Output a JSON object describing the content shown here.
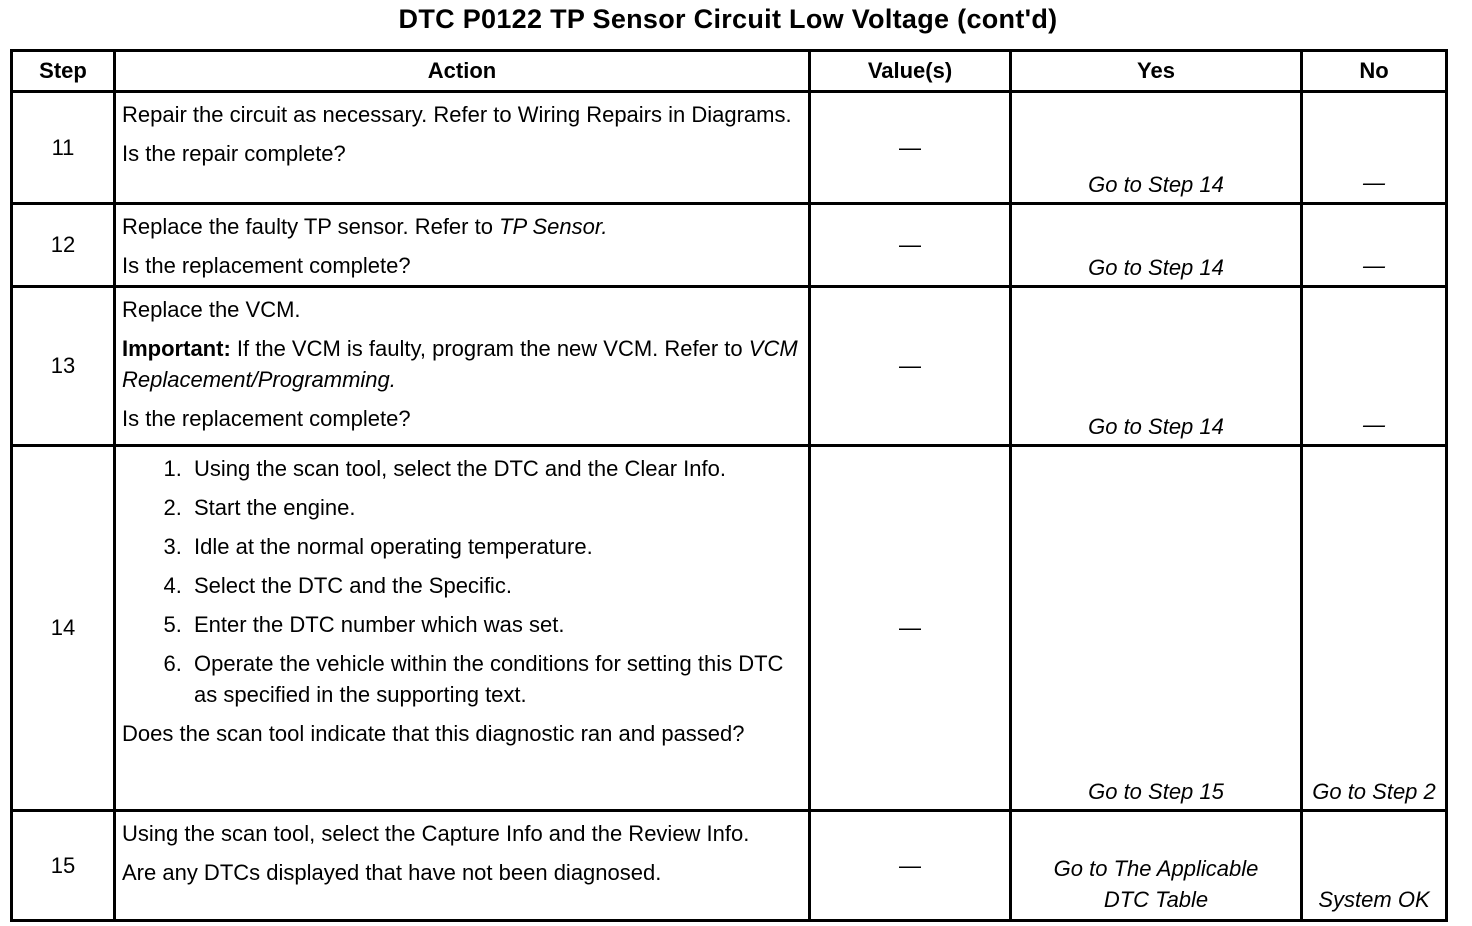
{
  "title": "DTC P0122 TP Sensor Circuit Low Voltage (cont'd)",
  "headers": {
    "step": "Step",
    "action": "Action",
    "values": "Value(s)",
    "yes": "Yes",
    "no": "No"
  },
  "rows": [
    {
      "step": "11",
      "action": [
        "Repair the circuit as necessary. Refer to Wiring Repairs in Diagrams.",
        "Is the repair complete?"
      ],
      "value": "—",
      "yes": "Go to Step 14",
      "no": "—"
    },
    {
      "step": "12",
      "action_pre": "Replace the faulty TP sensor. Refer to ",
      "action_ref": "TP Sensor.",
      "question": "Is the replacement complete?",
      "value": "—",
      "yes": "Go to Step 14",
      "no": "—"
    },
    {
      "step": "13",
      "line1": "Replace the VCM.",
      "important_label": "Important:",
      "important_text": " If the VCM is faulty, program the new VCM. Refer to ",
      "important_ref": "VCM Replacement/Programming.",
      "question": "Is the replacement complete?",
      "value": "—",
      "yes": "Go to Step 14",
      "no": "—"
    },
    {
      "step": "14",
      "steps": [
        "Using the scan tool, select the DTC and the Clear Info.",
        "Start the engine.",
        "Idle at the normal operating temperature.",
        "Select the DTC and the Specific.",
        "Enter the DTC number which was set.",
        "Operate the vehicle within the conditions for setting this DTC as specified in the supporting text."
      ],
      "question": "Does the scan tool indicate that this diagnostic ran and passed?",
      "value": "—",
      "yes": "Go to Step 15",
      "no": "Go to Step 2"
    },
    {
      "step": "15",
      "action": [
        "Using the scan tool, select the Capture Info and the Review Info.",
        "Are any DTCs displayed that have not been diagnosed."
      ],
      "value": "—",
      "yes": "Go to The Applicable DTC Table",
      "no": "System OK"
    }
  ]
}
